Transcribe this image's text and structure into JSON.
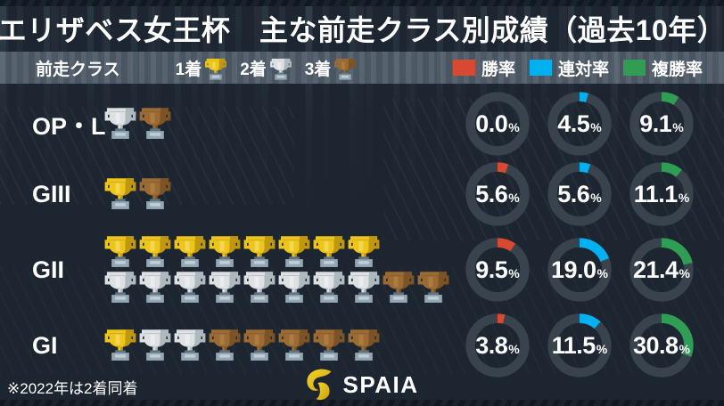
{
  "title": "エリザベス女王杯　主な前走クラス別成績（過去10年）",
  "legend": {
    "class_label": "前走クラス",
    "place_items": [
      {
        "label": "1着",
        "trophy": "gold"
      },
      {
        "label": "2着",
        "trophy": "silver"
      },
      {
        "label": "3着",
        "trophy": "bronze"
      }
    ],
    "rate_items": [
      {
        "label": "勝率",
        "color": "#d74a31"
      },
      {
        "label": "連対率",
        "color": "#00b0f0"
      },
      {
        "label": "複勝率",
        "color": "#2f9e54"
      }
    ]
  },
  "rows": [
    {
      "label": "OP・L",
      "trophy_lines": [
        [
          {
            "type": "silver",
            "count": 1
          },
          {
            "type": "bronze",
            "count": 1
          }
        ]
      ],
      "rates": [
        {
          "value": "0.0",
          "pct": 0
        },
        {
          "value": "4.5",
          "pct": 4.5
        },
        {
          "value": "9.1",
          "pct": 9.1
        }
      ]
    },
    {
      "label": "GIII",
      "trophy_lines": [
        [
          {
            "type": "gold",
            "count": 1
          },
          {
            "type": "bronze",
            "count": 1
          }
        ]
      ],
      "rates": [
        {
          "value": "5.6",
          "pct": 5.6
        },
        {
          "value": "5.6",
          "pct": 5.6
        },
        {
          "value": "11.1",
          "pct": 11.1
        }
      ]
    },
    {
      "label": "GII",
      "trophy_lines": [
        [
          {
            "type": "gold",
            "count": 8
          }
        ],
        [
          {
            "type": "silver",
            "count": 8
          },
          {
            "type": "bronze",
            "count": 2
          }
        ]
      ],
      "rates": [
        {
          "value": "9.5",
          "pct": 9.5
        },
        {
          "value": "19.0",
          "pct": 19.0
        },
        {
          "value": "21.4",
          "pct": 21.4
        }
      ]
    },
    {
      "label": "GI",
      "trophy_lines": [
        [
          {
            "type": "gold",
            "count": 1
          },
          {
            "type": "silver",
            "count": 2
          },
          {
            "type": "bronze",
            "count": 5
          }
        ]
      ],
      "rates": [
        {
          "value": "3.8",
          "pct": 3.8
        },
        {
          "value": "11.5",
          "pct": 11.5
        },
        {
          "value": "30.8",
          "pct": 30.8
        }
      ]
    }
  ],
  "colors": {
    "background": "#1d2530",
    "legend_strip": "#6f7e8c",
    "donut_track": "#39434d",
    "win_rate": "#d74a31",
    "quinella_rate": "#00b0f0",
    "show_rate": "#2f9e54"
  },
  "trophy_colors": {
    "gold": {
      "main": "#eec51b",
      "shade": "#bf980f",
      "hi": "#f7e37f"
    },
    "silver": {
      "main": "#dde1e4",
      "shade": "#aeb8bf",
      "hi": "#f4f6f7"
    },
    "bronze": {
      "main": "#9b6b33",
      "shade": "#7c5326",
      "hi": "#b98a4e"
    },
    "base": {
      "main": "#93a7b4",
      "hi": "#c2ced6",
      "dark": "#5f7382"
    }
  },
  "footer": {
    "note": "※2022年は2着同着",
    "brand": "SPAIA"
  },
  "chart_data": {
    "type": "table",
    "title": "エリザベス女王杯 主な前走クラス別成績（過去10年）",
    "columns": [
      "前走クラス",
      "1着",
      "2着",
      "3着",
      "勝率",
      "連対率",
      "複勝率"
    ],
    "rows": [
      [
        "OP・L",
        0,
        1,
        1,
        "0.0%",
        "4.5%",
        "9.1%"
      ],
      [
        "GIII",
        1,
        0,
        1,
        "5.6%",
        "5.6%",
        "11.1%"
      ],
      [
        "GII",
        8,
        8,
        2,
        "9.5%",
        "19.0%",
        "21.4%"
      ],
      [
        "GI",
        1,
        2,
        5,
        "3.8%",
        "11.5%",
        "30.8%"
      ]
    ],
    "layout_hints": {
      "rates_rendered_as": "donut charts, segment starts at 12 o'clock clockwise",
      "counts_rendered_as": "trophy icons (gold/silver/bronze)",
      "legend_position": "top strip",
      "note": "※2022年は2着同着"
    }
  }
}
